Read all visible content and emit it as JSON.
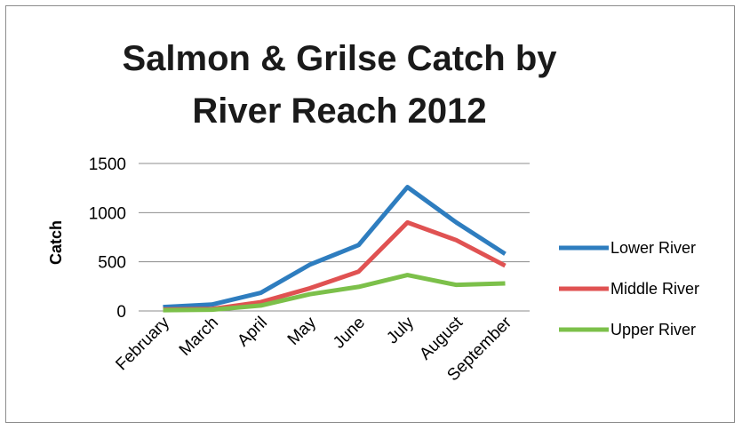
{
  "chart_data": {
    "type": "line",
    "title_lines": [
      "Salmon & Grilse Catch by",
      "River Reach 2012"
    ],
    "xlabel": "",
    "ylabel": "Catch",
    "categories": [
      "February",
      "March",
      "April",
      "May",
      "June",
      "July",
      "August",
      "September"
    ],
    "ylim": [
      0,
      1500
    ],
    "yticks": [
      "0",
      "500",
      "1000",
      "1500"
    ],
    "grid": true,
    "legend_position": "right",
    "series": [
      {
        "name": "Lower River",
        "color": "#2e7dbf",
        "values": [
          40,
          65,
          185,
          470,
          670,
          1260,
          900,
          580
        ]
      },
      {
        "name": "Middle River",
        "color": "#e05252",
        "values": [
          15,
          20,
          90,
          230,
          400,
          900,
          720,
          460
        ]
      },
      {
        "name": "Upper River",
        "color": "#7cc04a",
        "values": [
          8,
          12,
          55,
          170,
          245,
          365,
          265,
          280
        ]
      }
    ]
  }
}
